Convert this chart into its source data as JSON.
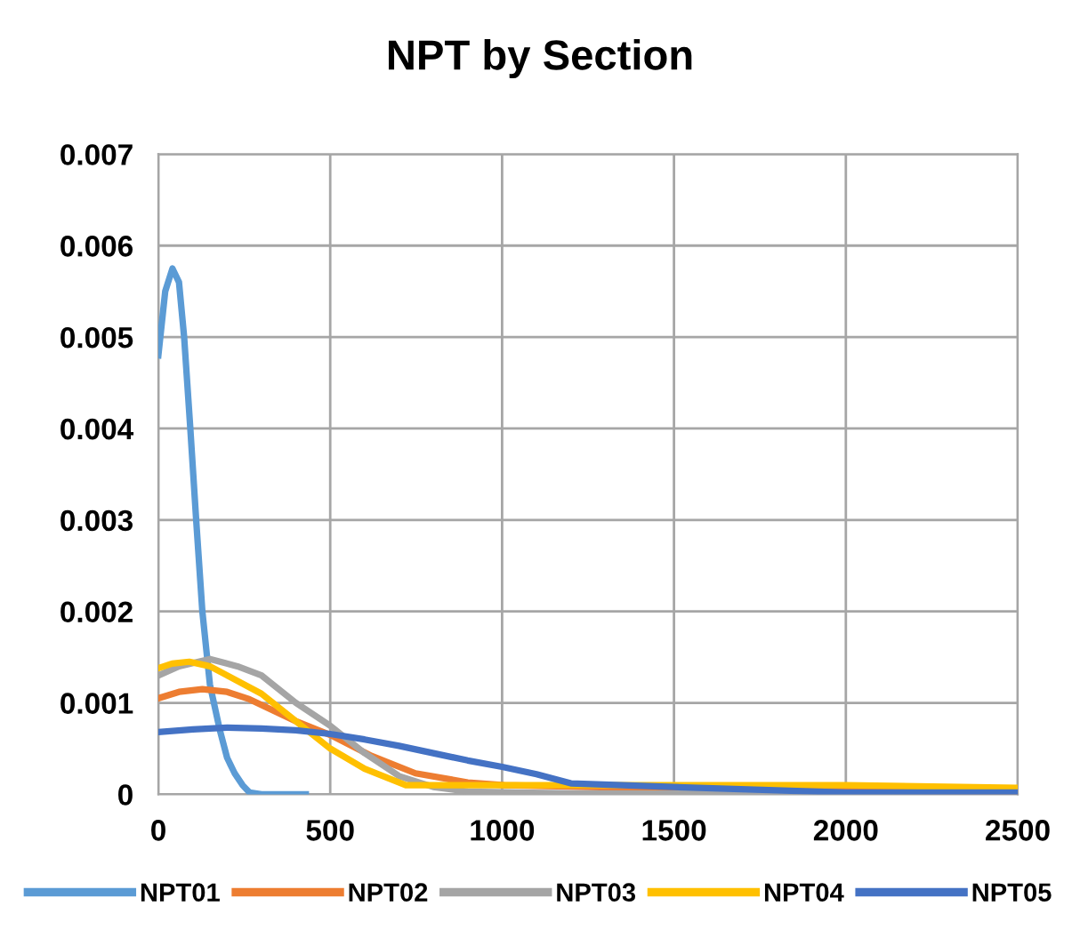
{
  "chart_data": {
    "type": "line",
    "title": "NPT by Section",
    "xlim": [
      0,
      2500
    ],
    "ylim": [
      0,
      0.007
    ],
    "xticks": [
      0,
      500,
      1000,
      1500,
      2000,
      2500
    ],
    "yticks": [
      0,
      0.001,
      0.002,
      0.003,
      0.004,
      0.005,
      0.006,
      0.007
    ],
    "grid": true,
    "legend": "bottom",
    "marker": "none",
    "line_style": "solid",
    "series": [
      {
        "name": "NPT01",
        "color": "#5b9bd5",
        "x": [
          0,
          20,
          41,
          60,
          75,
          93,
          110,
          128,
          150,
          179,
          200,
          222,
          245,
          265,
          300,
          429
        ],
        "values": [
          0.0048,
          0.0055,
          0.00575,
          0.0056,
          0.005,
          0.004,
          0.003,
          0.002,
          0.0012,
          0.0007,
          0.0004,
          0.00023,
          0.0001,
          2e-05,
          0,
          0
        ]
      },
      {
        "name": "NPT02",
        "color": "#ed7d31",
        "x": [
          0,
          60,
          128,
          200,
          265,
          400,
          500,
          620,
          748,
          900,
          1007,
          1500,
          2000,
          2500
        ],
        "values": [
          0.00105,
          0.00112,
          0.00115,
          0.00112,
          0.00104,
          0.0008,
          0.00065,
          0.00042,
          0.00023,
          0.00013,
          0.0001,
          6e-05,
          4e-05,
          3e-05
        ]
      },
      {
        "name": "NPT03",
        "color": "#a5a5a5",
        "x": [
          0,
          60,
          150,
          230,
          300,
          400,
          500,
          600,
          700,
          800,
          900,
          1200,
          2500
        ],
        "values": [
          0.0013,
          0.0014,
          0.00148,
          0.0014,
          0.0013,
          0.001,
          0.00075,
          0.00045,
          0.0002,
          8e-05,
          3e-05,
          1e-05,
          0
        ]
      },
      {
        "name": "NPT04",
        "color": "#ffc000",
        "x": [
          0,
          40,
          90,
          150,
          200,
          300,
          400,
          500,
          600,
          720,
          1000,
          1500,
          2000,
          2500
        ],
        "values": [
          0.00138,
          0.00143,
          0.00145,
          0.0014,
          0.0013,
          0.0011,
          0.0008,
          0.0005,
          0.00028,
          0.0001,
          0.0001,
          0.0001,
          0.0001,
          7e-05
        ]
      },
      {
        "name": "NPT05",
        "color": "#4472c4",
        "x": [
          0,
          100,
          200,
          300,
          400,
          500,
          600,
          700,
          800,
          900,
          1000,
          1100,
          1200,
          1500,
          2000,
          2500
        ],
        "values": [
          0.00068,
          0.00071,
          0.00073,
          0.00072,
          0.0007,
          0.00066,
          0.0006,
          0.00053,
          0.00045,
          0.00037,
          0.0003,
          0.00022,
          0.00012,
          8e-05,
          2e-05,
          2e-05
        ]
      }
    ]
  }
}
